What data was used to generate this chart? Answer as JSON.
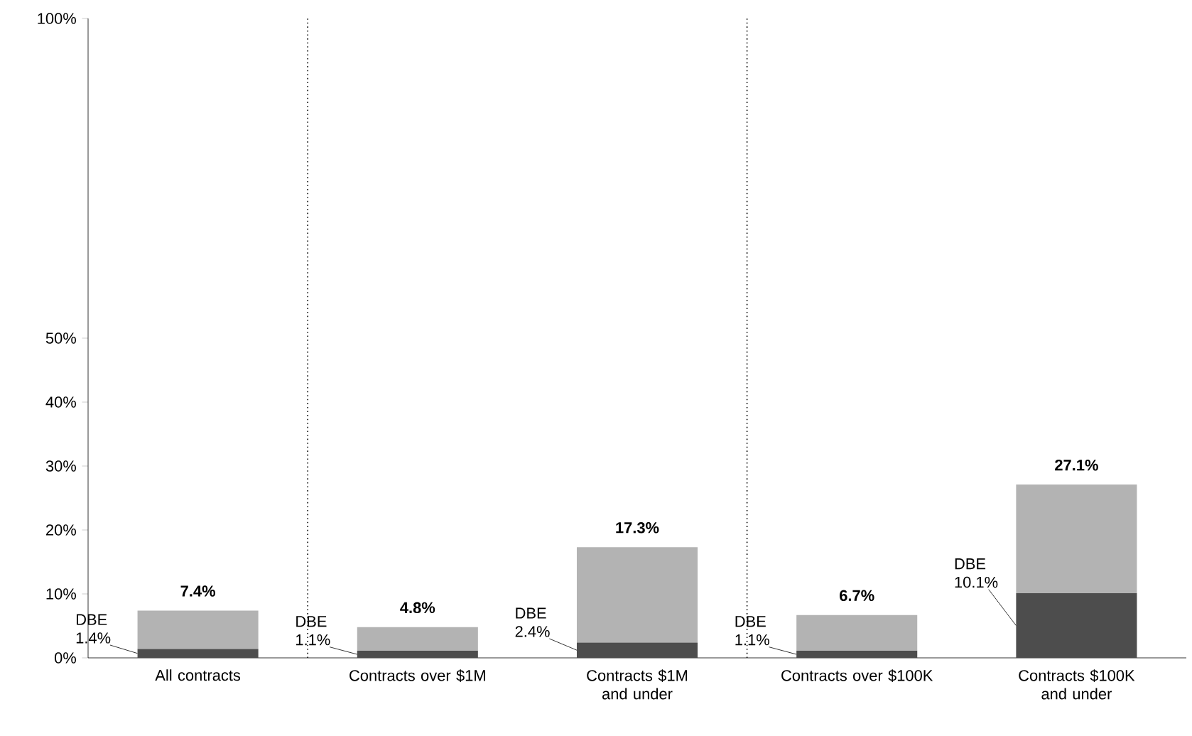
{
  "chart_data": {
    "type": "bar",
    "stacked": true,
    "categories": [
      "All contracts",
      "Contracts over $1M",
      "Contracts $1M and under",
      "Contracts over $100K",
      "Contracts $100K and under"
    ],
    "series": [
      {
        "color": "#4d4d4d",
        "values": [
          1.4,
          1.1,
          2.4,
          1.1,
          10.1
        ],
        "value_labels": [
          "DBE 1.4%",
          "DBE 1.1%",
          "DBE 2.4%",
          "DBE 1.1%",
          "DBE 10.1%"
        ]
      },
      {
        "color": "#b3b3b3",
        "values": [
          6.0,
          3.7,
          14.9,
          5.6,
          17.0
        ]
      }
    ],
    "totals": [
      "7.4%",
      "4.8%",
      "17.3%",
      "6.7%",
      "27.1%"
    ],
    "ylim": [
      0,
      100
    ],
    "yticks": [
      {
        "value": 0,
        "label": "0%"
      },
      {
        "value": 10,
        "label": "10%"
      },
      {
        "value": 20,
        "label": "20%"
      },
      {
        "value": 30,
        "label": "30%"
      },
      {
        "value": 40,
        "label": "40%"
      },
      {
        "value": 50,
        "label": "50%"
      },
      {
        "value": 100,
        "label": "100%"
      }
    ]
  }
}
